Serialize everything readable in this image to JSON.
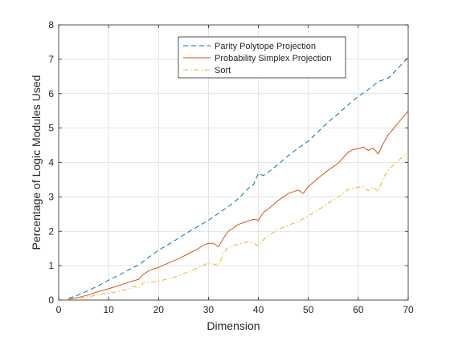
{
  "chart_data": {
    "type": "line",
    "xlabel": "Dimension",
    "ylabel": "Percentage of Logic Modules Used",
    "xlim": [
      0,
      70
    ],
    "ylim": [
      0,
      8
    ],
    "xticks": [
      0,
      10,
      20,
      30,
      40,
      50,
      60,
      70
    ],
    "yticks": [
      0,
      1,
      2,
      3,
      4,
      5,
      6,
      7,
      8
    ],
    "grid": true,
    "legend_position": "top-right",
    "series": [
      {
        "name": "Parity Polytope Projection",
        "color": "#0072BD",
        "dash": "dashed",
        "x": [
          2,
          4,
          6,
          8,
          10,
          12,
          14,
          16,
          18,
          20,
          22,
          24,
          26,
          28,
          30,
          32,
          34,
          36,
          38,
          39,
          40,
          41,
          42,
          44,
          46,
          48,
          50,
          52,
          54,
          56,
          58,
          60,
          62,
          64,
          66,
          68,
          70
        ],
        "y": [
          0.05,
          0.15,
          0.28,
          0.42,
          0.58,
          0.72,
          0.88,
          1.02,
          1.24,
          1.45,
          1.62,
          1.8,
          1.98,
          2.15,
          2.32,
          2.52,
          2.72,
          2.95,
          3.25,
          3.35,
          3.68,
          3.62,
          3.72,
          3.95,
          4.2,
          4.42,
          4.62,
          4.9,
          5.18,
          5.42,
          5.68,
          5.92,
          6.12,
          6.35,
          6.45,
          6.75,
          7.05
        ]
      },
      {
        "name": "Probability Simplex Projection",
        "color": "#D95319",
        "dash": "solid",
        "x": [
          2,
          4,
          6,
          8,
          10,
          12,
          14,
          16,
          17,
          18,
          20,
          22,
          24,
          26,
          28,
          29,
          30,
          31,
          32,
          33,
          34,
          36,
          38,
          39,
          40,
          41,
          42,
          44,
          46,
          47,
          48,
          49,
          50,
          52,
          54,
          56,
          58,
          59,
          60,
          61,
          62,
          63,
          64,
          65,
          66,
          68,
          70
        ],
        "y": [
          0.03,
          0.08,
          0.15,
          0.25,
          0.33,
          0.42,
          0.52,
          0.6,
          0.75,
          0.85,
          0.95,
          1.08,
          1.2,
          1.35,
          1.5,
          1.6,
          1.65,
          1.65,
          1.55,
          1.8,
          2.0,
          2.2,
          2.3,
          2.35,
          2.32,
          2.55,
          2.65,
          2.9,
          3.1,
          3.15,
          3.2,
          3.1,
          3.3,
          3.55,
          3.78,
          3.98,
          4.3,
          4.38,
          4.4,
          4.45,
          4.35,
          4.42,
          4.25,
          4.55,
          4.8,
          5.15,
          5.5
        ]
      },
      {
        "name": "Sort",
        "color": "#EDB120",
        "dash": "dashdot",
        "x": [
          2,
          4,
          6,
          8,
          10,
          12,
          14,
          15,
          16,
          17,
          18,
          20,
          22,
          24,
          26,
          28,
          30,
          31,
          32,
          33,
          34,
          36,
          38,
          39,
          40,
          41,
          42,
          44,
          46,
          48,
          50,
          52,
          54,
          56,
          58,
          60,
          61,
          62,
          63,
          64,
          65,
          66,
          68,
          70
        ],
        "y": [
          0.02,
          0.05,
          0.1,
          0.15,
          0.2,
          0.25,
          0.32,
          0.4,
          0.35,
          0.5,
          0.52,
          0.55,
          0.62,
          0.7,
          0.82,
          0.95,
          1.08,
          1.05,
          1.0,
          1.35,
          1.55,
          1.62,
          1.7,
          1.65,
          1.58,
          1.75,
          1.88,
          2.05,
          2.18,
          2.28,
          2.45,
          2.62,
          2.82,
          3.0,
          3.22,
          3.28,
          3.3,
          3.18,
          3.28,
          3.15,
          3.55,
          3.78,
          4.05,
          4.28
        ]
      }
    ]
  }
}
